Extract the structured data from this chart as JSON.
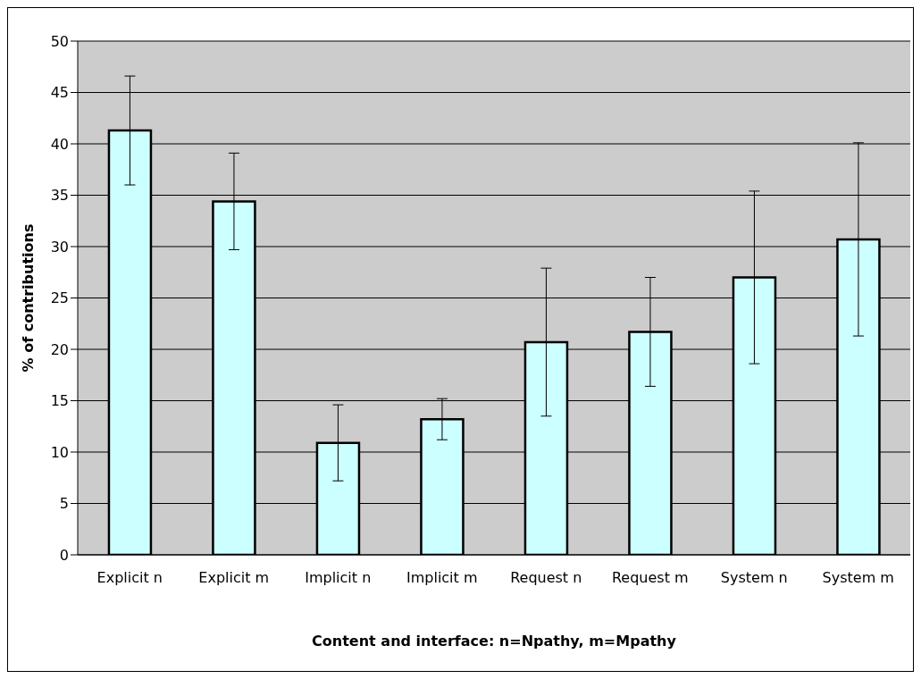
{
  "chart_data": {
    "type": "bar",
    "xlabel": "Content and interface: n=Npathy, m=Mpathy",
    "ylabel": "% of contributions",
    "categories": [
      "Explicit n",
      "Explicit m",
      "Implicit n",
      "Implicit m",
      "Request n",
      "Request m",
      "System n",
      "System m"
    ],
    "values": [
      41.3,
      34.4,
      10.9,
      13.2,
      20.7,
      21.7,
      27.0,
      30.7
    ],
    "errors": [
      5.3,
      4.7,
      3.7,
      2.0,
      7.2,
      5.3,
      8.4,
      9.4
    ],
    "color": "#ccffff",
    "ylim": [
      0,
      50
    ],
    "yticks": [
      0,
      5,
      10,
      15,
      20,
      25,
      30,
      35,
      40,
      45,
      50
    ],
    "grid": "y",
    "legend": false
  }
}
